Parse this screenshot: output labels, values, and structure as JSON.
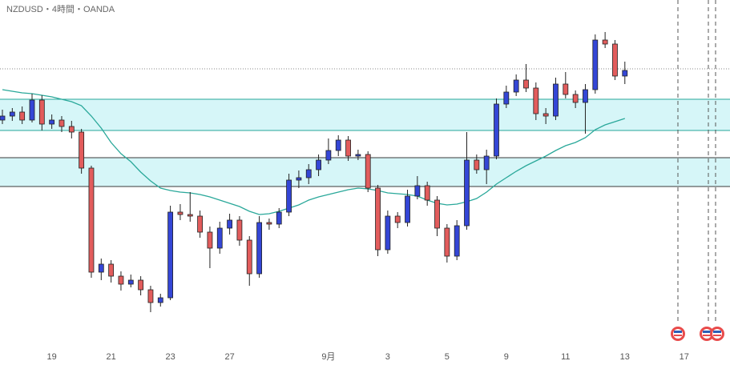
{
  "chart_data": {
    "type": "candlestick",
    "title": "NZDUSD・4時間・OANDA",
    "ylim": [
      0,
      435
    ],
    "categories": [
      null,
      null,
      null,
      null,
      null,
      "19",
      null,
      null,
      null,
      null,
      null,
      "21",
      null,
      null,
      null,
      null,
      null,
      "23",
      null,
      null,
      null,
      null,
      null,
      "27",
      null,
      null,
      null,
      null,
      null,
      null,
      null,
      null,
      null,
      "9月",
      null,
      null,
      null,
      null,
      null,
      "3",
      null,
      null,
      null,
      null,
      null,
      "5",
      null,
      null,
      null,
      null,
      null,
      "9",
      null,
      null,
      null,
      null,
      null,
      "11",
      null,
      null,
      null,
      null,
      null,
      "13",
      null,
      null,
      null,
      null,
      null,
      "17",
      null
    ],
    "up_color": "#3446d6",
    "down_color": "#e25c5c",
    "values": [
      [
        285,
        298,
        280,
        290
      ],
      [
        290,
        300,
        284,
        295
      ],
      [
        295,
        302,
        280,
        285
      ],
      [
        285,
        318,
        282,
        310
      ],
      [
        310,
        316,
        272,
        280
      ],
      [
        280,
        292,
        274,
        285
      ],
      [
        285,
        290,
        270,
        277
      ],
      [
        277,
        284,
        262,
        270
      ],
      [
        270,
        274,
        218,
        225
      ],
      [
        225,
        228,
        88,
        95
      ],
      [
        95,
        112,
        85,
        105
      ],
      [
        105,
        110,
        82,
        90
      ],
      [
        90,
        96,
        72,
        80
      ],
      [
        80,
        92,
        76,
        85
      ],
      [
        85,
        90,
        66,
        73
      ],
      [
        73,
        78,
        45,
        57
      ],
      [
        57,
        68,
        52,
        63
      ],
      [
        63,
        178,
        60,
        170
      ],
      [
        170,
        180,
        160,
        167
      ],
      [
        167,
        195,
        158,
        165
      ],
      [
        165,
        172,
        138,
        145
      ],
      [
        145,
        152,
        100,
        125
      ],
      [
        125,
        158,
        118,
        150
      ],
      [
        150,
        168,
        142,
        160
      ],
      [
        160,
        165,
        128,
        135
      ],
      [
        135,
        140,
        78,
        93
      ],
      [
        93,
        165,
        88,
        157
      ],
      [
        157,
        162,
        148,
        155
      ],
      [
        155,
        175,
        150,
        170
      ],
      [
        170,
        218,
        165,
        210
      ],
      [
        210,
        222,
        200,
        213
      ],
      [
        213,
        230,
        205,
        223
      ],
      [
        223,
        242,
        215,
        235
      ],
      [
        235,
        262,
        230,
        247
      ],
      [
        247,
        266,
        240,
        260
      ],
      [
        260,
        265,
        234,
        240
      ],
      [
        240,
        248,
        235,
        242
      ],
      [
        242,
        246,
        195,
        200
      ],
      [
        200,
        204,
        115,
        123
      ],
      [
        123,
        172,
        118,
        165
      ],
      [
        165,
        170,
        150,
        157
      ],
      [
        157,
        198,
        152,
        190
      ],
      [
        190,
        215,
        186,
        203
      ],
      [
        203,
        208,
        178,
        185
      ],
      [
        185,
        190,
        140,
        150
      ],
      [
        150,
        155,
        107,
        115
      ],
      [
        115,
        160,
        110,
        153
      ],
      [
        153,
        270,
        148,
        235
      ],
      [
        235,
        242,
        218,
        223
      ],
      [
        223,
        248,
        205,
        240
      ],
      [
        240,
        312,
        236,
        305
      ],
      [
        305,
        328,
        300,
        320
      ],
      [
        320,
        342,
        315,
        335
      ],
      [
        335,
        355,
        320,
        325
      ],
      [
        325,
        332,
        285,
        293
      ],
      [
        293,
        300,
        280,
        290
      ],
      [
        290,
        338,
        285,
        330
      ],
      [
        330,
        345,
        312,
        317
      ],
      [
        317,
        322,
        300,
        307
      ],
      [
        307,
        330,
        268,
        323
      ],
      [
        323,
        392,
        318,
        385
      ],
      [
        385,
        395,
        375,
        380
      ],
      [
        380,
        385,
        335,
        340
      ],
      [
        340,
        358,
        330,
        347
      ],
      null,
      null,
      null,
      null,
      null,
      null,
      null
    ],
    "ma": {
      "color": "#2aa89a",
      "values": [
        323,
        321,
        319,
        318,
        316,
        314,
        311,
        308,
        303,
        290,
        275,
        257,
        243,
        233,
        220,
        209,
        200,
        197,
        195,
        194,
        192,
        189,
        185,
        181,
        177,
        171,
        167,
        168,
        171,
        175,
        179,
        185,
        189,
        192,
        195,
        198,
        200,
        199,
        197,
        194,
        193,
        192,
        190,
        185,
        181,
        179,
        180,
        183,
        187,
        195,
        205,
        213,
        221,
        228,
        234,
        240,
        247,
        253,
        257,
        263,
        273,
        279,
        283,
        287,
        null,
        null,
        null,
        null,
        null,
        null,
        null
      ]
    },
    "price_line": 349,
    "zones": [
      {
        "range": [
          272,
          311
        ],
        "line_color": "#27a79a",
        "fill": "#d6f6f8"
      },
      {
        "range": [
          202,
          238
        ],
        "line_color": "#3a3a3a",
        "fill": "#d6f6f8"
      }
    ]
  }
}
